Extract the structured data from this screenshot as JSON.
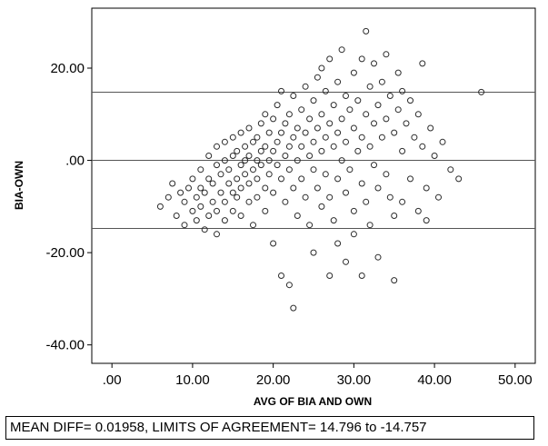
{
  "chart_data": {
    "type": "scatter",
    "title": "",
    "xlabel": "AVG OF BIA AND OWN",
    "ylabel": "BIA-OWN",
    "xlim": [
      -2.5,
      52.5
    ],
    "ylim": [
      -44,
      33
    ],
    "x_ticks": [
      ".00",
      "10.00",
      "20.00",
      "30.00",
      "40.00",
      "50.00"
    ],
    "x_tick_values": [
      0,
      10,
      20,
      30,
      40,
      50
    ],
    "y_ticks": [
      "20.00",
      ".00",
      "-20.00",
      "-40.00"
    ],
    "y_tick_values": [
      20,
      0,
      -20,
      -40
    ],
    "reference_lines": [
      14.796,
      0.01958,
      -14.757
    ],
    "grid": false,
    "marker": "open-circle",
    "points": [
      [
        6.0,
        -10.0
      ],
      [
        7.0,
        -8.0
      ],
      [
        7.5,
        -5.0
      ],
      [
        8.0,
        -12.0
      ],
      [
        8.5,
        -7.0
      ],
      [
        9.0,
        -9.0
      ],
      [
        9.0,
        -14.0
      ],
      [
        9.5,
        -6.0
      ],
      [
        10.0,
        -11.0
      ],
      [
        10.0,
        -4.0
      ],
      [
        10.5,
        -8.0
      ],
      [
        10.5,
        -13.0
      ],
      [
        11.0,
        -6.0
      ],
      [
        11.0,
        -10.0
      ],
      [
        11.0,
        -2.0
      ],
      [
        11.5,
        -15.0
      ],
      [
        11.5,
        -7.0
      ],
      [
        12.0,
        -12.0
      ],
      [
        12.0,
        -4.0
      ],
      [
        12.0,
        1.0
      ],
      [
        12.5,
        -9.0
      ],
      [
        12.5,
        -5.0
      ],
      [
        13.0,
        -11.0
      ],
      [
        13.0,
        -1.0
      ],
      [
        13.0,
        3.0
      ],
      [
        13.0,
        -16.0
      ],
      [
        13.5,
        -7.0
      ],
      [
        13.5,
        -3.0
      ],
      [
        14.0,
        -9.0
      ],
      [
        14.0,
        0.0
      ],
      [
        14.0,
        4.0
      ],
      [
        14.0,
        -13.0
      ],
      [
        14.5,
        -5.0
      ],
      [
        14.5,
        -2.0
      ],
      [
        15.0,
        -7.0
      ],
      [
        15.0,
        1.0
      ],
      [
        15.0,
        -11.0
      ],
      [
        15.0,
        5.0
      ],
      [
        15.5,
        -4.0
      ],
      [
        15.5,
        -8.0
      ],
      [
        15.5,
        2.0
      ],
      [
        16.0,
        -1.0
      ],
      [
        16.0,
        -6.0
      ],
      [
        16.0,
        -12.0
      ],
      [
        16.0,
        6.0
      ],
      [
        16.5,
        -3.0
      ],
      [
        16.5,
        0.0
      ],
      [
        16.5,
        3.0
      ],
      [
        17.0,
        -5.0
      ],
      [
        17.0,
        -9.0
      ],
      [
        17.0,
        1.0
      ],
      [
        17.0,
        7.0
      ],
      [
        17.5,
        -2.0
      ],
      [
        17.5,
        4.0
      ],
      [
        17.5,
        -14.0
      ],
      [
        18.0,
        -4.0
      ],
      [
        18.0,
        0.0
      ],
      [
        18.0,
        5.0
      ],
      [
        18.0,
        -8.0
      ],
      [
        18.5,
        2.0
      ],
      [
        18.5,
        -1.0
      ],
      [
        18.5,
        8.0
      ],
      [
        19.0,
        -6.0
      ],
      [
        19.0,
        3.0
      ],
      [
        19.0,
        10.0
      ],
      [
        19.0,
        -11.0
      ],
      [
        19.5,
        0.0
      ],
      [
        19.5,
        6.0
      ],
      [
        19.5,
        -3.0
      ],
      [
        20.0,
        2.0
      ],
      [
        20.0,
        -7.0
      ],
      [
        20.0,
        9.0
      ],
      [
        20.0,
        -18.0
      ],
      [
        20.5,
        4.0
      ],
      [
        20.5,
        -1.0
      ],
      [
        20.5,
        12.0
      ],
      [
        21.0,
        -4.0
      ],
      [
        21.0,
        6.0
      ],
      [
        21.0,
        -25.0
      ],
      [
        21.0,
        15.0
      ],
      [
        21.5,
        1.0
      ],
      [
        21.5,
        8.0
      ],
      [
        21.5,
        -9.0
      ],
      [
        22.0,
        3.0
      ],
      [
        22.0,
        -2.0
      ],
      [
        22.0,
        10.0
      ],
      [
        22.0,
        -27.0
      ],
      [
        22.5,
        5.0
      ],
      [
        22.5,
        -6.0
      ],
      [
        22.5,
        14.0
      ],
      [
        22.5,
        -32.0
      ],
      [
        23.0,
        0.0
      ],
      [
        23.0,
        7.0
      ],
      [
        23.0,
        -12.0
      ],
      [
        23.5,
        3.0
      ],
      [
        23.5,
        11.0
      ],
      [
        23.5,
        -4.0
      ],
      [
        24.0,
        6.0
      ],
      [
        24.0,
        -8.0
      ],
      [
        24.0,
        16.0
      ],
      [
        24.5,
        1.0
      ],
      [
        24.5,
        9.0
      ],
      [
        24.5,
        -14.0
      ],
      [
        25.0,
        4.0
      ],
      [
        25.0,
        -2.0
      ],
      [
        25.0,
        13.0
      ],
      [
        25.0,
        -20.0
      ],
      [
        25.5,
        7.0
      ],
      [
        25.5,
        -6.0
      ],
      [
        25.5,
        18.0
      ],
      [
        26.0,
        2.0
      ],
      [
        26.0,
        10.0
      ],
      [
        26.0,
        -10.0
      ],
      [
        26.0,
        20.0
      ],
      [
        26.5,
        5.0
      ],
      [
        26.5,
        -3.0
      ],
      [
        26.5,
        15.0
      ],
      [
        27.0,
        8.0
      ],
      [
        27.0,
        -8.0
      ],
      [
        27.0,
        22.0
      ],
      [
        27.0,
        -25.0
      ],
      [
        27.5,
        3.0
      ],
      [
        27.5,
        12.0
      ],
      [
        27.5,
        -13.0
      ],
      [
        28.0,
        6.0
      ],
      [
        28.0,
        -4.0
      ],
      [
        28.0,
        17.0
      ],
      [
        28.0,
        -18.0
      ],
      [
        28.5,
        9.0
      ],
      [
        28.5,
        0.0
      ],
      [
        28.5,
        24.0
      ],
      [
        29.0,
        4.0
      ],
      [
        29.0,
        14.0
      ],
      [
        29.0,
        -7.0
      ],
      [
        29.0,
        -22.0
      ],
      [
        29.5,
        11.0
      ],
      [
        29.5,
        -2.0
      ],
      [
        30.0,
        7.0
      ],
      [
        30.0,
        19.0
      ],
      [
        30.0,
        -11.0
      ],
      [
        30.0,
        -16.0
      ],
      [
        30.5,
        2.0
      ],
      [
        30.5,
        13.0
      ],
      [
        31.0,
        5.0
      ],
      [
        31.0,
        22.0
      ],
      [
        31.0,
        -5.0
      ],
      [
        31.0,
        -25.0
      ],
      [
        31.5,
        10.0
      ],
      [
        31.5,
        -9.0
      ],
      [
        31.5,
        28.0
      ],
      [
        32.0,
        3.0
      ],
      [
        32.0,
        16.0
      ],
      [
        32.0,
        -14.0
      ],
      [
        32.5,
        8.0
      ],
      [
        32.5,
        -1.0
      ],
      [
        32.5,
        21.0
      ],
      [
        33.0,
        12.0
      ],
      [
        33.0,
        -6.0
      ],
      [
        33.0,
        -21.0
      ],
      [
        33.5,
        5.0
      ],
      [
        33.5,
        17.0
      ],
      [
        34.0,
        9.0
      ],
      [
        34.0,
        -3.0
      ],
      [
        34.0,
        23.0
      ],
      [
        34.5,
        14.0
      ],
      [
        34.5,
        -8.0
      ],
      [
        35.0,
        6.0
      ],
      [
        35.0,
        -12.0
      ],
      [
        35.0,
        -26.0
      ],
      [
        35.5,
        11.0
      ],
      [
        35.5,
        19.0
      ],
      [
        36.0,
        2.0
      ],
      [
        36.0,
        15.0
      ],
      [
        36.0,
        -9.0
      ],
      [
        36.5,
        8.0
      ],
      [
        37.0,
        13.0
      ],
      [
        37.0,
        -4.0
      ],
      [
        37.5,
        5.0
      ],
      [
        38.0,
        10.0
      ],
      [
        38.0,
        -11.0
      ],
      [
        38.5,
        3.0
      ],
      [
        38.5,
        21.0
      ],
      [
        39.0,
        -6.0
      ],
      [
        39.0,
        -13.0
      ],
      [
        39.5,
        7.0
      ],
      [
        40.0,
        1.0
      ],
      [
        40.5,
        -8.0
      ],
      [
        41.0,
        4.0
      ],
      [
        42.0,
        -2.0
      ],
      [
        43.0,
        -4.0
      ],
      [
        45.8,
        14.8
      ]
    ]
  },
  "footer": {
    "text": "MEAN DIFF= 0.01958, LIMITS OF AGREEMENT= 14.796 to -14.757"
  }
}
